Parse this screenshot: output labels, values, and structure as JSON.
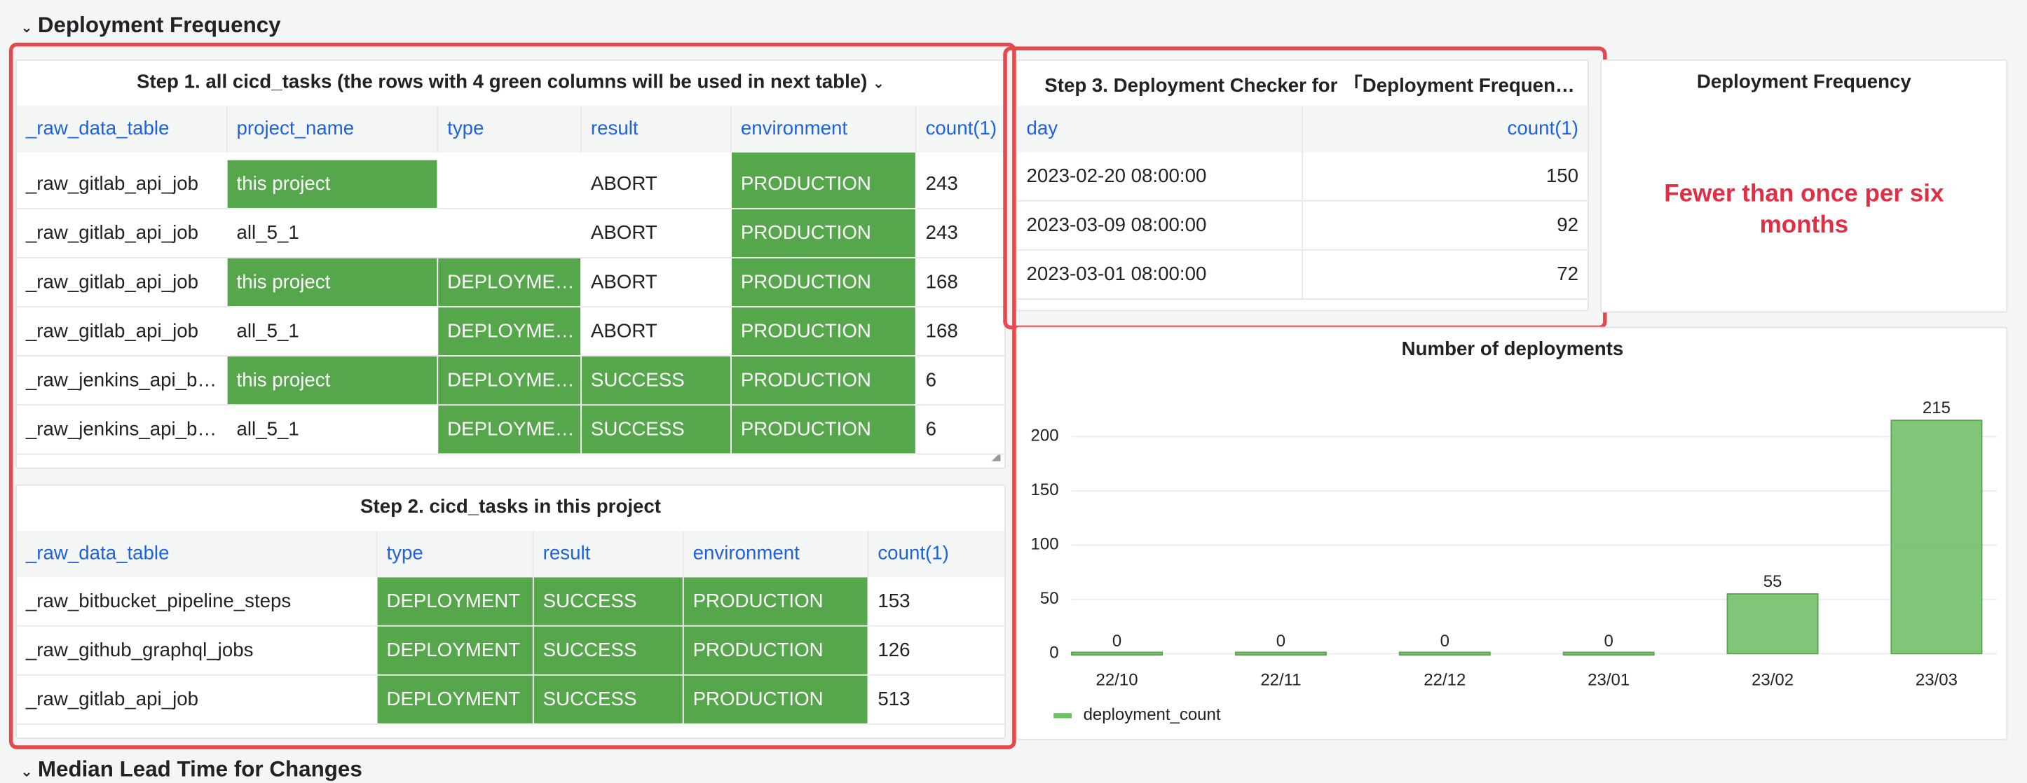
{
  "sections": [
    "Deployment Frequency",
    "Median Lead Time for Changes"
  ],
  "step1": {
    "title": "Step 1. all cicd_tasks (the rows with 4 green columns will be used in next table)",
    "columns": [
      "_raw_data_table",
      "project_name",
      "type",
      "result",
      "environment",
      "count(1)"
    ],
    "rows": [
      [
        "_raw_gitlab_api_job",
        "this project",
        null,
        "ABORT",
        "PRODUCTION",
        243
      ],
      [
        "_raw_gitlab_api_job",
        "all_5_1",
        null,
        "ABORT",
        "PRODUCTION",
        243
      ],
      [
        "_raw_gitlab_api_job",
        "this project",
        "DEPLOYME…",
        "ABORT",
        "PRODUCTION",
        168
      ],
      [
        "_raw_gitlab_api_job",
        "all_5_1",
        "DEPLOYME…",
        "ABORT",
        "PRODUCTION",
        168
      ],
      [
        "_raw_jenkins_api_b…",
        "this project",
        "DEPLOYME…",
        "SUCCESS",
        "PRODUCTION",
        6
      ],
      [
        "_raw_jenkins_api_b…",
        "all_5_1",
        "DEPLOYME…",
        "SUCCESS",
        "PRODUCTION",
        6
      ]
    ],
    "fills": [
      [
        null,
        "#56a64b",
        null,
        null,
        "#56a64b",
        null
      ],
      [
        null,
        null,
        null,
        null,
        "#56a64b",
        null
      ],
      [
        null,
        "#56a64b",
        "#56a64b",
        null,
        "#56a64b",
        null
      ],
      [
        null,
        null,
        "#56a64b",
        null,
        "#56a64b",
        null
      ],
      [
        null,
        "#56a64b",
        "#56a64b",
        "#56a64b",
        "#56a64b",
        null
      ],
      [
        null,
        null,
        "#56a64b",
        "#56a64b",
        "#56a64b",
        null
      ]
    ]
  },
  "step2": {
    "title": "Step 2. cicd_tasks in this project",
    "columns": [
      "_raw_data_table",
      "type",
      "result",
      "environment",
      "count(1)"
    ],
    "rows": [
      [
        "_raw_bitbucket_pipeline_steps",
        "DEPLOYMENT",
        "SUCCESS",
        "PRODUCTION",
        153
      ],
      [
        "_raw_github_graphql_jobs",
        "DEPLOYMENT",
        "SUCCESS",
        "PRODUCTION",
        126
      ],
      [
        "_raw_gitlab_api_job",
        "DEPLOYMENT",
        "SUCCESS",
        "PRODUCTION",
        513
      ]
    ],
    "fills": [
      [
        null,
        "#56a64b",
        "#56a64b",
        "#56a64b",
        null
      ],
      [
        null,
        "#56a64b",
        "#56a64b",
        "#56a64b",
        null
      ],
      [
        null,
        "#56a64b",
        "#56a64b",
        "#56a64b",
        null
      ]
    ]
  },
  "step3": {
    "title": "Step 3. Deployment Checker for 「Deployment Frequen…",
    "columns": [
      "day",
      "count(1)"
    ],
    "rows": [
      [
        "2023-02-20 08:00:00",
        150
      ],
      [
        "2023-03-09 08:00:00",
        92
      ],
      [
        "2023-03-01 08:00:00",
        72
      ]
    ]
  },
  "stat": {
    "title": "Deployment Frequency",
    "text": "Fewer than once per six months",
    "color": "#e02f44"
  },
  "chart_data": {
    "type": "bar",
    "title": "Number of deployments",
    "categories": [
      "22/10",
      "22/11",
      "22/12",
      "23/01",
      "23/02",
      "23/03"
    ],
    "series": [
      {
        "name": "deployment_count",
        "color": "#73bf69",
        "values": [
          0,
          0,
          0,
          0,
          55,
          215
        ]
      }
    ],
    "ylim": [
      0,
      230
    ],
    "yticks": [
      0,
      50,
      100,
      150,
      200
    ],
    "grid": true
  }
}
